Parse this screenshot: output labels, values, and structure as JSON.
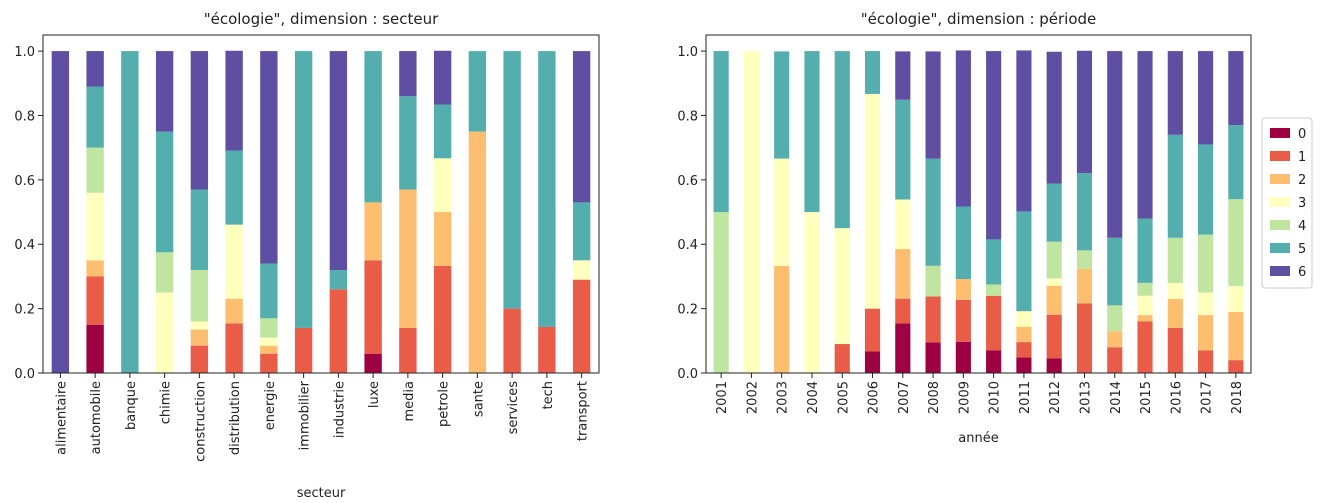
{
  "chart_data": [
    {
      "type": "bar",
      "stacked": true,
      "title": "\"écologie\", dimension : secteur",
      "x_label": "secteur",
      "categories": [
        "alimentaire",
        "automobile",
        "banque",
        "chimie",
        "construction",
        "distribution",
        "energie",
        "immobilier",
        "industrie",
        "luxe",
        "media",
        "petrole",
        "sante",
        "services",
        "tech",
        "transport"
      ],
      "series": [
        {
          "color": "#9e0142",
          "values": [
            0,
            0.15,
            0,
            0,
            0,
            0,
            0,
            0,
            0,
            0.06,
            0,
            0,
            0,
            0,
            0,
            0
          ]
        },
        {
          "color": "#e95c47",
          "values": [
            0,
            0.15,
            0,
            0,
            0.085,
            0.154,
            0.06,
            0.14,
            0.26,
            0.29,
            0.14,
            0.333,
            0,
            0.2,
            0.143,
            0.29
          ]
        },
        {
          "color": "#fdbf6f",
          "values": [
            0,
            0.05,
            0,
            0,
            0.05,
            0.077,
            0.025,
            0,
            0,
            0.18,
            0.43,
            0.167,
            0.75,
            0,
            0,
            0
          ]
        },
        {
          "color": "#ffffbe",
          "values": [
            0,
            0.21,
            0,
            0.25,
            0.025,
            0.23,
            0.025,
            0,
            0,
            0,
            0,
            0.167,
            0,
            0,
            0,
            0.06
          ]
        },
        {
          "color": "#bfe5a0",
          "values": [
            0,
            0.14,
            0,
            0.125,
            0.16,
            0,
            0.06,
            0,
            0,
            0,
            0,
            0,
            0,
            0,
            0,
            0
          ]
        },
        {
          "color": "#54aead",
          "values": [
            0,
            0.19,
            1,
            0.375,
            0.25,
            0.23,
            0.17,
            0.86,
            0.06,
            0.47,
            0.29,
            0.167,
            0.25,
            0.8,
            0.857,
            0.18
          ]
        },
        {
          "color": "#5e4fa2",
          "values": [
            1,
            0.11,
            0,
            0.25,
            0.43,
            0.31,
            0.66,
            0,
            0.68,
            0,
            0.14,
            0.167,
            0,
            0,
            0,
            0.47
          ]
        }
      ],
      "ylim": [
        0,
        1.05
      ],
      "yticks": [
        {
          "value": 0,
          "label": "0.0"
        },
        0.2,
        0.4,
        0.6,
        0.8,
        {
          "value": 1,
          "label": "1.0"
        }
      ]
    },
    {
      "type": "bar",
      "stacked": true,
      "title": "\"écologie\", dimension : période",
      "x_label": "année",
      "legend": "right",
      "categories": [
        "2001",
        "2002",
        "2003",
        "2004",
        "2005",
        "2006",
        "2007",
        "2008",
        "2009",
        "2010",
        "2011",
        "2012",
        "2013",
        "2014",
        "2015",
        "2016",
        "2017",
        "2018"
      ],
      "series": [
        {
          "name": "0",
          "color": "#9e0142",
          "values": [
            0,
            0,
            0,
            0,
            0,
            0.067,
            0.154,
            0.095,
            0.097,
            0.07,
            0.048,
            0.045,
            0,
            0,
            0,
            0,
            0,
            0
          ]
        },
        {
          "name": "1",
          "color": "#e95c47",
          "values": [
            0,
            0,
            0,
            0,
            0.09,
            0.133,
            0.077,
            0.143,
            0.13,
            0.17,
            0.048,
            0.136,
            0.216,
            0.08,
            0.16,
            0.14,
            0.07,
            0.04
          ]
        },
        {
          "name": "2",
          "color": "#fdbf6f",
          "values": [
            0,
            0,
            0.333,
            0,
            0,
            0,
            0.154,
            0,
            0.065,
            0,
            0.048,
            0.09,
            0.108,
            0.05,
            0.02,
            0.09,
            0.11,
            0.15
          ]
        },
        {
          "name": "3",
          "color": "#ffffbe",
          "values": [
            0,
            1,
            0.333,
            0.5,
            0.36,
            0.667,
            0.154,
            0,
            0,
            0,
            0.048,
            0.023,
            0,
            0,
            0.06,
            0.05,
            0.07,
            0.08
          ]
        },
        {
          "name": "4",
          "color": "#bfe5a0",
          "values": [
            0.5,
            0,
            0,
            0,
            0,
            0,
            0,
            0.095,
            0,
            0.035,
            0,
            0.114,
            0.057,
            0.08,
            0.04,
            0.14,
            0.18,
            0.27
          ]
        },
        {
          "name": "5",
          "color": "#54aead",
          "values": [
            0.5,
            0,
            0.333,
            0.5,
            0.55,
            0.133,
            0.31,
            0.333,
            0.225,
            0.14,
            0.31,
            0.18,
            0.24,
            0.21,
            0.2,
            0.32,
            0.28,
            0.23
          ]
        },
        {
          "name": "6",
          "color": "#5e4fa2",
          "values": [
            0,
            0,
            0,
            0,
            0,
            0,
            0.15,
            0.333,
            0.485,
            0.585,
            0.5,
            0.41,
            0.38,
            0.58,
            0.52,
            0.26,
            0.29,
            0.23
          ]
        }
      ],
      "ylim": [
        0,
        1.05
      ],
      "yticks": [
        {
          "value": 0,
          "label": "0.0"
        },
        0.2,
        0.4,
        0.6,
        0.8,
        {
          "value": 1,
          "label": "1.0"
        }
      ]
    }
  ]
}
